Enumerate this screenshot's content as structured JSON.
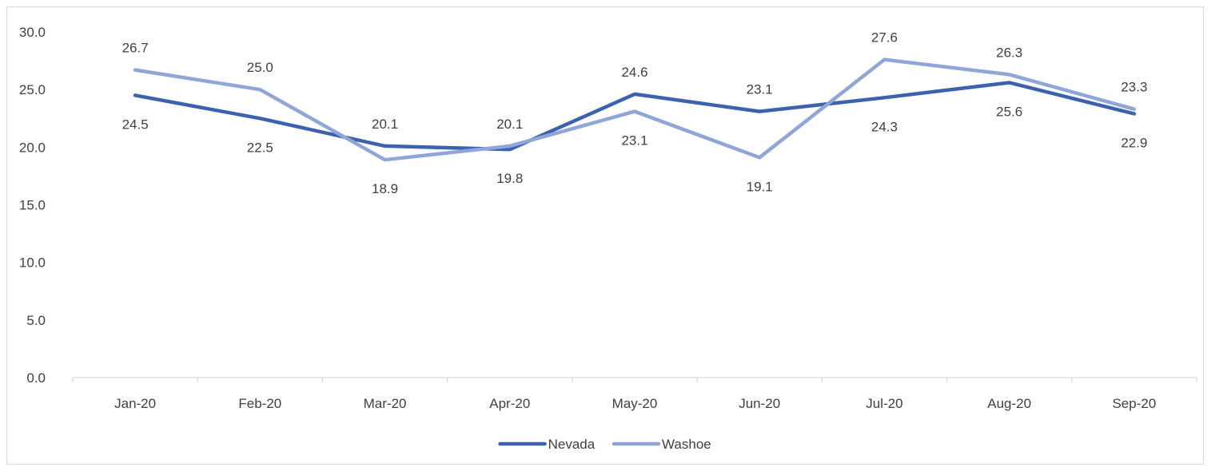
{
  "chart_data": {
    "type": "line",
    "categories": [
      "Jan-20",
      "Feb-20",
      "Mar-20",
      "Apr-20",
      "May-20",
      "Jun-20",
      "Jul-20",
      "Aug-20",
      "Sep-20"
    ],
    "series": [
      {
        "name": "Nevada",
        "color": "#3d62ad",
        "values": [
          24.5,
          22.5,
          20.1,
          19.8,
          24.6,
          23.1,
          24.3,
          25.6,
          22.9
        ],
        "labels": [
          "24.5",
          "22.5",
          "20.1",
          "19.8",
          "24.6",
          "23.1",
          "24.3",
          "25.6",
          "22.9"
        ]
      },
      {
        "name": "Washoe",
        "color": "#8fa6d8",
        "values": [
          26.7,
          25.0,
          18.9,
          20.1,
          23.1,
          19.1,
          27.6,
          26.3,
          23.3
        ],
        "labels": [
          "26.7",
          "25.0",
          "18.9",
          "20.1",
          "23.1",
          "19.1",
          "27.6",
          "26.3",
          "23.3"
        ]
      }
    ],
    "ylim": [
      0,
      30
    ],
    "yticks": [
      0,
      5,
      10,
      15,
      20,
      25,
      30
    ],
    "ytick_labels": [
      "0.0",
      "5.0",
      "10.0",
      "15.0",
      "20.0",
      "25.0",
      "30.0"
    ],
    "grid": false,
    "legend": "bottom",
    "axis_color": "#d9d9d9",
    "title": "",
    "xlabel": "",
    "ylabel": ""
  }
}
